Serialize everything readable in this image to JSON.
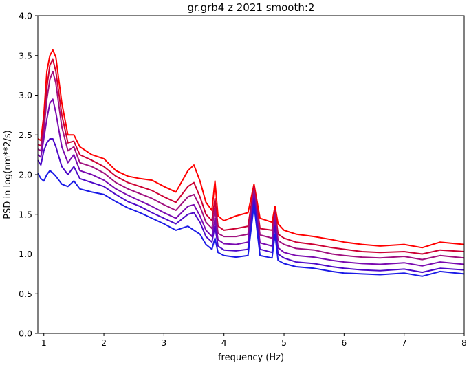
{
  "chart_data": {
    "type": "line",
    "title": "gr.grb4 z 2021 smooth:2",
    "xlabel": "frequency (Hz)",
    "ylabel": "PSD in log(nm**2/s)",
    "xlim": [
      0.9,
      8.0
    ],
    "ylim": [
      0.0,
      4.0
    ],
    "xticks": [
      "1",
      "2",
      "3",
      "4",
      "5",
      "6",
      "7",
      "8"
    ],
    "yticks": [
      "0.0",
      "0.5",
      "1.0",
      "1.5",
      "2.0",
      "2.5",
      "3.0",
      "3.5",
      "4.0"
    ],
    "grid": false,
    "legend": "none",
    "series": [
      {
        "color": "#ff0000",
        "x": [
          0.9,
          0.95,
          1.0,
          1.05,
          1.1,
          1.15,
          1.2,
          1.3,
          1.4,
          1.5,
          1.6,
          1.8,
          2.0,
          2.2,
          2.4,
          2.6,
          2.8,
          3.0,
          3.2,
          3.4,
          3.5,
          3.6,
          3.7,
          3.8,
          3.85,
          3.9,
          4.0,
          4.2,
          4.4,
          4.5,
          4.6,
          4.8,
          4.85,
          4.9,
          5.0,
          5.2,
          5.5,
          5.8,
          6.0,
          6.3,
          6.6,
          7.0,
          7.3,
          7.6,
          8.0
        ],
        "y": [
          2.45,
          2.43,
          2.75,
          3.3,
          3.5,
          3.57,
          3.48,
          2.9,
          2.5,
          2.5,
          2.35,
          2.25,
          2.2,
          2.05,
          1.98,
          1.95,
          1.93,
          1.85,
          1.78,
          2.05,
          2.12,
          1.92,
          1.65,
          1.55,
          1.92,
          1.48,
          1.42,
          1.48,
          1.52,
          1.88,
          1.45,
          1.4,
          1.6,
          1.38,
          1.3,
          1.25,
          1.22,
          1.18,
          1.15,
          1.12,
          1.1,
          1.12,
          1.08,
          1.15,
          1.12
        ]
      },
      {
        "color": "#cc0033",
        "x": [
          0.9,
          0.95,
          1.0,
          1.05,
          1.1,
          1.15,
          1.2,
          1.3,
          1.4,
          1.5,
          1.6,
          1.8,
          2.0,
          2.2,
          2.4,
          2.6,
          2.8,
          3.0,
          3.2,
          3.4,
          3.5,
          3.6,
          3.7,
          3.8,
          3.85,
          3.9,
          4.0,
          4.2,
          4.4,
          4.5,
          4.6,
          4.8,
          4.85,
          4.9,
          5.0,
          5.2,
          5.5,
          5.8,
          6.0,
          6.3,
          6.6,
          7.0,
          7.3,
          7.6,
          8.0
        ],
        "y": [
          2.38,
          2.36,
          2.65,
          3.1,
          3.38,
          3.45,
          3.3,
          2.75,
          2.4,
          2.42,
          2.25,
          2.18,
          2.1,
          1.98,
          1.9,
          1.85,
          1.8,
          1.72,
          1.65,
          1.85,
          1.9,
          1.72,
          1.5,
          1.42,
          1.7,
          1.35,
          1.3,
          1.32,
          1.35,
          1.85,
          1.32,
          1.3,
          1.55,
          1.25,
          1.2,
          1.15,
          1.12,
          1.08,
          1.06,
          1.03,
          1.02,
          1.03,
          1.0,
          1.05,
          1.03
        ]
      },
      {
        "color": "#a0107f",
        "x": [
          0.9,
          0.95,
          1.0,
          1.05,
          1.1,
          1.15,
          1.2,
          1.3,
          1.4,
          1.5,
          1.6,
          1.8,
          2.0,
          2.2,
          2.4,
          2.6,
          2.8,
          3.0,
          3.2,
          3.4,
          3.5,
          3.6,
          3.7,
          3.8,
          3.85,
          3.9,
          4.0,
          4.2,
          4.4,
          4.5,
          4.6,
          4.8,
          4.85,
          4.9,
          5.0,
          5.2,
          5.5,
          5.8,
          6.0,
          6.3,
          6.6,
          7.0,
          7.3,
          7.6,
          8.0
        ],
        "y": [
          2.32,
          2.3,
          2.55,
          2.95,
          3.2,
          3.3,
          3.15,
          2.6,
          2.3,
          2.35,
          2.15,
          2.1,
          2.02,
          1.9,
          1.82,
          1.76,
          1.7,
          1.62,
          1.55,
          1.72,
          1.75,
          1.6,
          1.4,
          1.32,
          1.58,
          1.26,
          1.22,
          1.22,
          1.25,
          1.8,
          1.24,
          1.2,
          1.5,
          1.17,
          1.12,
          1.07,
          1.05,
          1.0,
          0.98,
          0.96,
          0.95,
          0.97,
          0.93,
          0.98,
          0.95
        ]
      },
      {
        "color": "#7a0ab0",
        "x": [
          0.9,
          0.95,
          1.0,
          1.05,
          1.1,
          1.15,
          1.2,
          1.3,
          1.4,
          1.5,
          1.6,
          1.8,
          2.0,
          2.2,
          2.4,
          2.6,
          2.8,
          3.0,
          3.2,
          3.4,
          3.5,
          3.6,
          3.7,
          3.8,
          3.85,
          3.9,
          4.0,
          4.2,
          4.4,
          4.5,
          4.6,
          4.8,
          4.85,
          4.9,
          5.0,
          5.2,
          5.5,
          5.8,
          6.0,
          6.3,
          6.6,
          7.0,
          7.3,
          7.6,
          8.0
        ],
        "y": [
          2.25,
          2.22,
          2.45,
          2.7,
          2.9,
          2.95,
          2.78,
          2.35,
          2.15,
          2.25,
          2.05,
          2.0,
          1.93,
          1.82,
          1.74,
          1.67,
          1.6,
          1.52,
          1.45,
          1.6,
          1.62,
          1.48,
          1.3,
          1.22,
          1.45,
          1.18,
          1.13,
          1.12,
          1.15,
          1.75,
          1.14,
          1.1,
          1.42,
          1.08,
          1.02,
          0.98,
          0.96,
          0.92,
          0.9,
          0.88,
          0.87,
          0.89,
          0.85,
          0.9,
          0.87
        ]
      },
      {
        "color": "#4d08c8",
        "x": [
          0.9,
          0.95,
          1.0,
          1.05,
          1.1,
          1.15,
          1.2,
          1.3,
          1.4,
          1.5,
          1.6,
          1.8,
          2.0,
          2.2,
          2.4,
          2.6,
          2.8,
          3.0,
          3.2,
          3.4,
          3.5,
          3.6,
          3.7,
          3.8,
          3.85,
          3.9,
          4.0,
          4.2,
          4.4,
          4.5,
          4.6,
          4.8,
          4.85,
          4.9,
          5.0,
          5.2,
          5.5,
          5.8,
          6.0,
          6.3,
          6.6,
          7.0,
          7.3,
          7.6,
          8.0
        ],
        "y": [
          2.18,
          2.12,
          2.3,
          2.4,
          2.45,
          2.45,
          2.35,
          2.1,
          2.0,
          2.1,
          1.95,
          1.9,
          1.85,
          1.75,
          1.66,
          1.6,
          1.52,
          1.45,
          1.38,
          1.5,
          1.52,
          1.4,
          1.22,
          1.15,
          1.35,
          1.1,
          1.05,
          1.04,
          1.06,
          1.7,
          1.06,
          1.02,
          1.35,
          1.0,
          0.95,
          0.9,
          0.88,
          0.84,
          0.82,
          0.8,
          0.79,
          0.81,
          0.77,
          0.82,
          0.8
        ]
      },
      {
        "color": "#1a1ae6",
        "x": [
          0.9,
          0.95,
          1.0,
          1.05,
          1.1,
          1.15,
          1.2,
          1.3,
          1.4,
          1.5,
          1.6,
          1.8,
          2.0,
          2.2,
          2.4,
          2.6,
          2.8,
          3.0,
          3.2,
          3.4,
          3.5,
          3.6,
          3.7,
          3.8,
          3.85,
          3.9,
          4.0,
          4.2,
          4.4,
          4.5,
          4.6,
          4.8,
          4.85,
          4.9,
          5.0,
          5.2,
          5.5,
          5.8,
          6.0,
          6.3,
          6.6,
          7.0,
          7.3,
          7.6,
          8.0
        ],
        "y": [
          2.02,
          1.95,
          1.92,
          2.0,
          2.05,
          2.02,
          1.98,
          1.88,
          1.85,
          1.92,
          1.82,
          1.78,
          1.75,
          1.66,
          1.58,
          1.52,
          1.45,
          1.38,
          1.3,
          1.35,
          1.3,
          1.25,
          1.12,
          1.06,
          1.2,
          1.02,
          0.98,
          0.96,
          0.98,
          1.62,
          0.98,
          0.95,
          1.25,
          0.92,
          0.88,
          0.84,
          0.82,
          0.78,
          0.76,
          0.75,
          0.74,
          0.76,
          0.72,
          0.78,
          0.75
        ]
      }
    ]
  }
}
